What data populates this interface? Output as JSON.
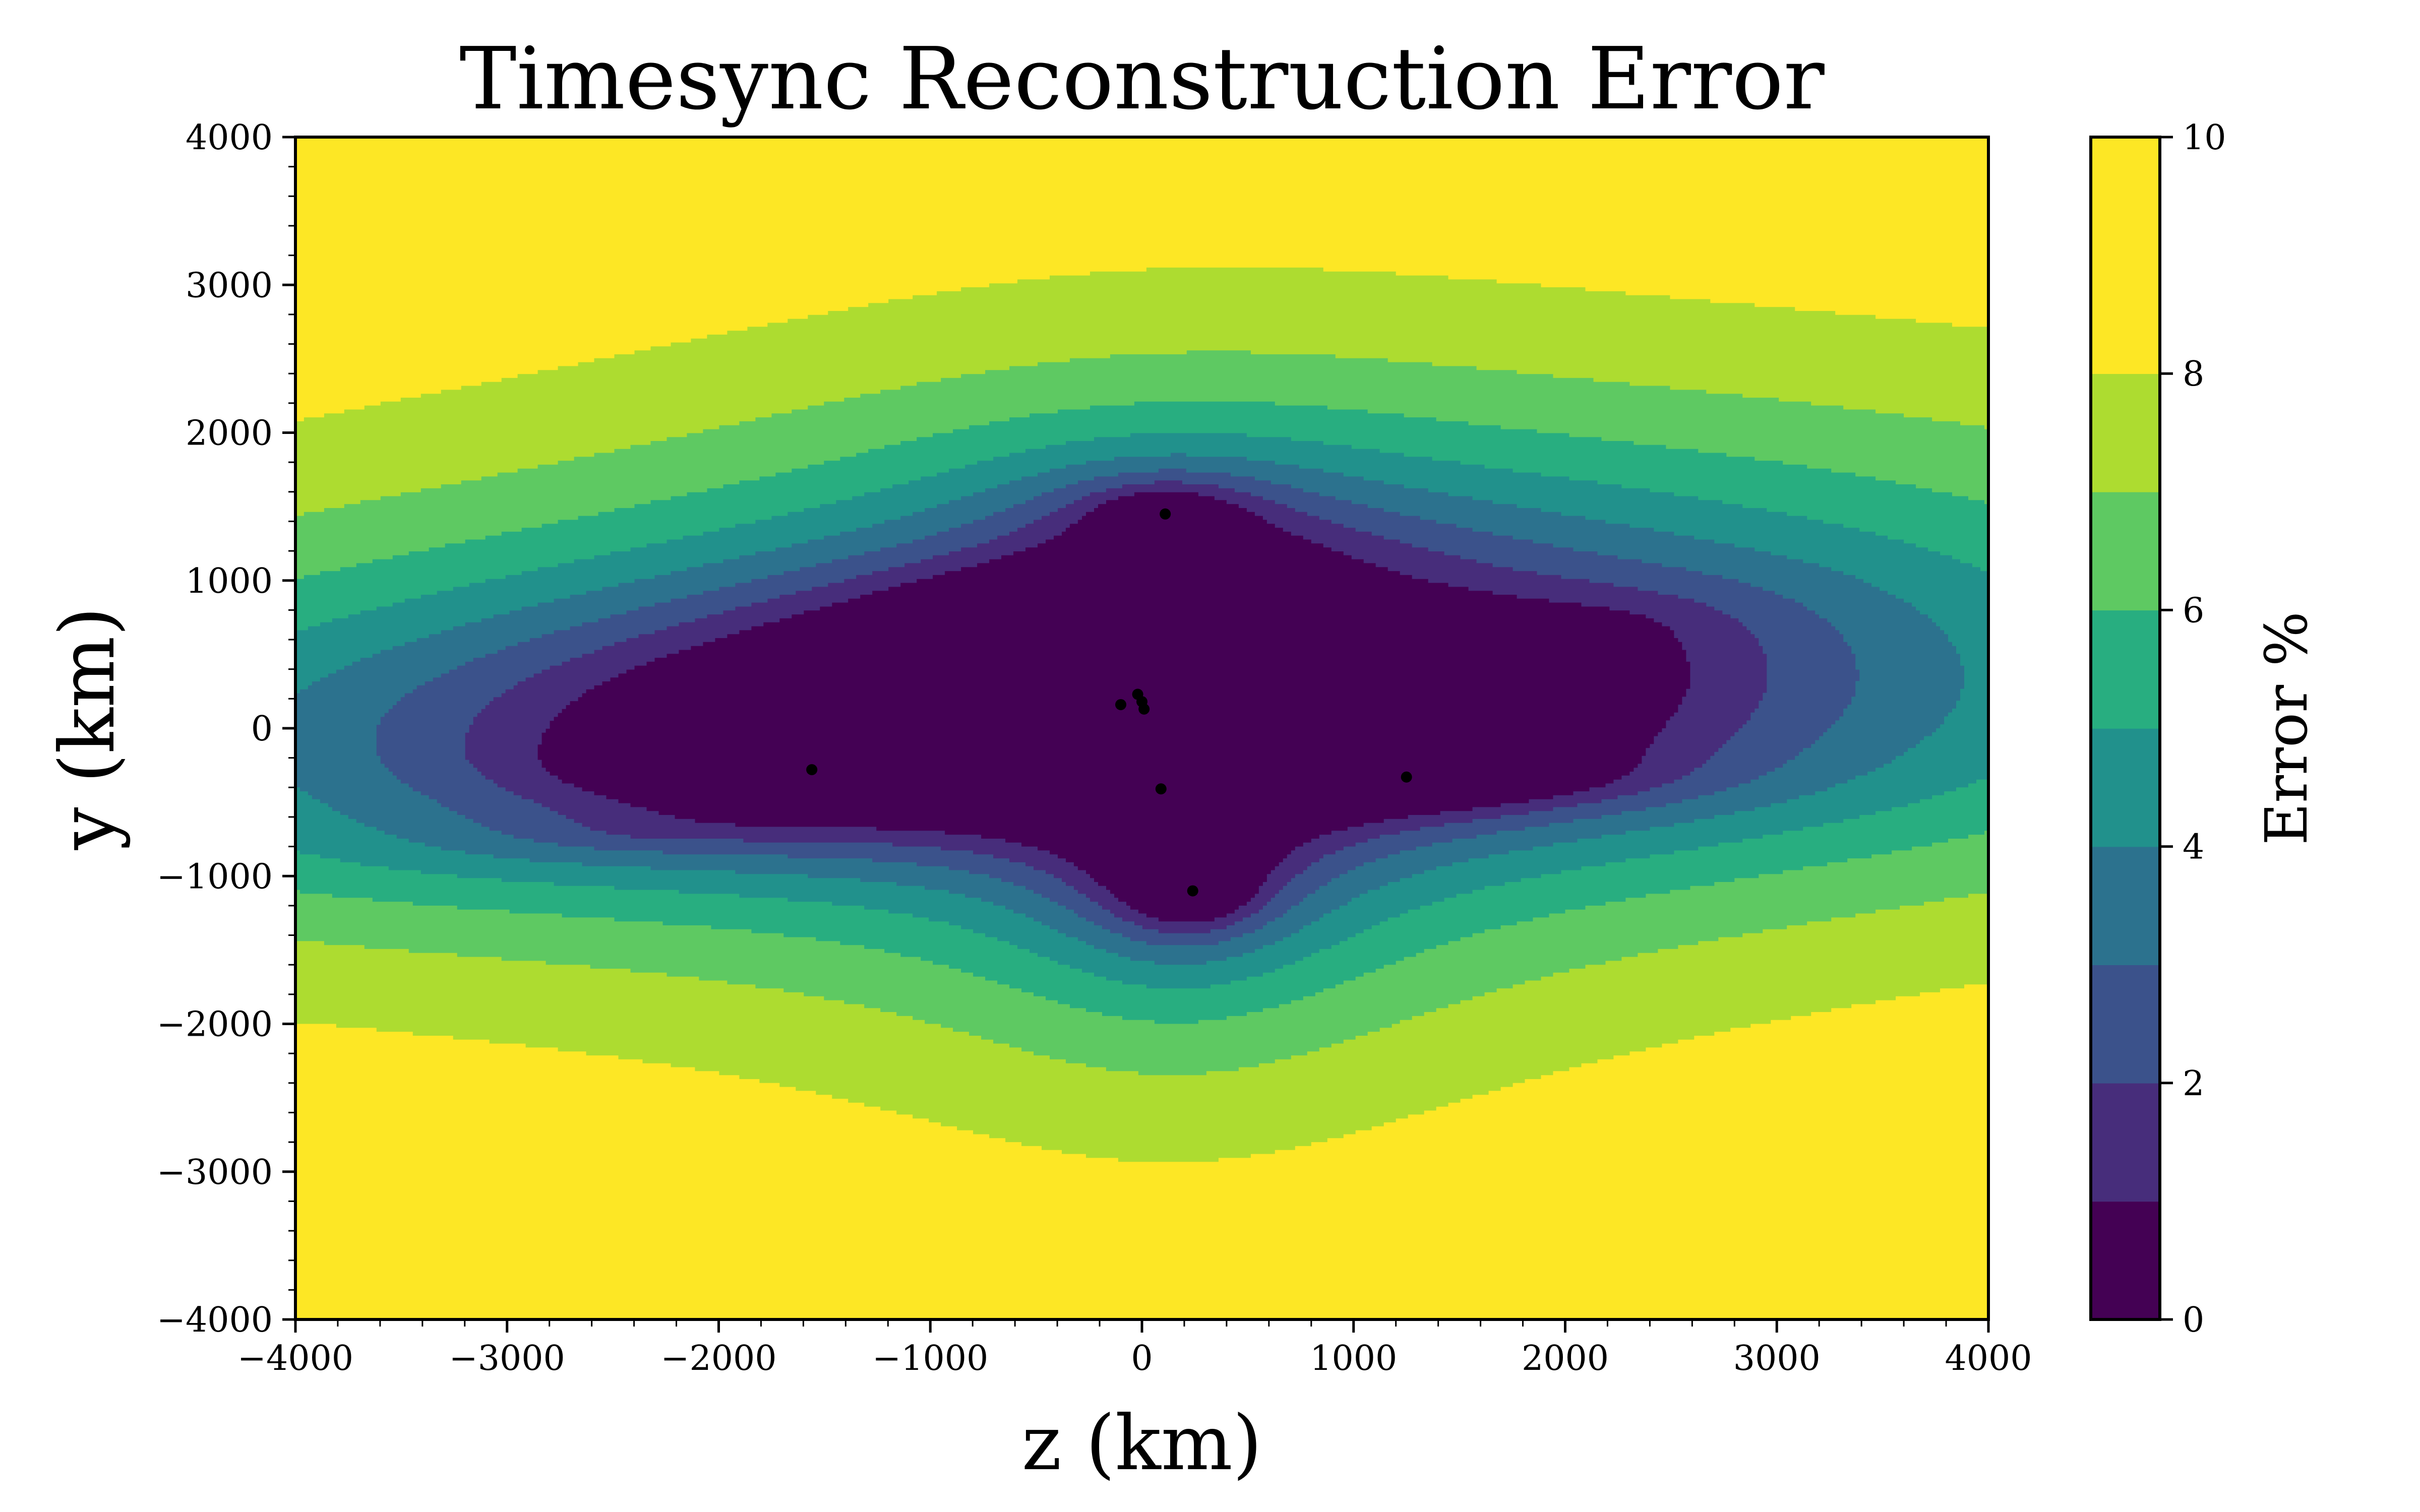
{
  "chart_data": {
    "type": "contour",
    "title": "Timesync Reconstruction Error",
    "xlabel": "z (km)",
    "ylabel": "y (km)",
    "xlim": [
      -4000,
      4000
    ],
    "ylim": [
      -4000,
      4000
    ],
    "x_ticks": [
      -4000,
      -3000,
      -2000,
      -1000,
      0,
      1000,
      2000,
      3000,
      4000
    ],
    "y_ticks": [
      -4000,
      -3000,
      -2000,
      -1000,
      0,
      1000,
      2000,
      3000,
      4000
    ],
    "x_tick_labels": [
      "−4000",
      "−3000",
      "−2000",
      "−1000",
      "0",
      "1000",
      "2000",
      "3000",
      "4000"
    ],
    "y_tick_labels": [
      "−4000",
      "−3000",
      "−2000",
      "−1000",
      "0",
      "1000",
      "2000",
      "3000",
      "4000"
    ],
    "grid": true,
    "colorbar": {
      "label": "Error %",
      "range": [
        0,
        10
      ],
      "levels": [
        0,
        1,
        2,
        3,
        4,
        5,
        6,
        7,
        8,
        9,
        10
      ],
      "ticks": [
        0,
        2,
        4,
        6,
        8,
        10
      ],
      "tick_labels": [
        "0",
        "2",
        "4",
        "6",
        "8",
        "10"
      ],
      "colormap": "viridis",
      "colors": [
        "#440154",
        "#472d7b",
        "#3b528b",
        "#2c728e",
        "#21918c",
        "#28ae80",
        "#5ec962",
        "#addc30",
        "#fde725"
      ]
    },
    "receivers": [
      {
        "z": 110,
        "y": 1450
      },
      {
        "z": -20,
        "y": 230
      },
      {
        "z": -100,
        "y": 160
      },
      {
        "z": 0,
        "y": 180
      },
      {
        "z": 10,
        "y": 130
      },
      {
        "z": -1560,
        "y": -280
      },
      {
        "z": 1250,
        "y": -330
      },
      {
        "z": 90,
        "y": -410
      },
      {
        "z": 240,
        "y": -1100
      }
    ],
    "error_field": {
      "background_percent": 10,
      "minima": [
        {
          "z": 110,
          "y": 1450
        },
        {
          "z": -20,
          "y": 170
        },
        {
          "z": -1560,
          "y": -280
        },
        {
          "z": 1250,
          "y": -330
        },
        {
          "z": 90,
          "y": -410
        },
        {
          "z": 240,
          "y": -1100
        }
      ]
    }
  }
}
